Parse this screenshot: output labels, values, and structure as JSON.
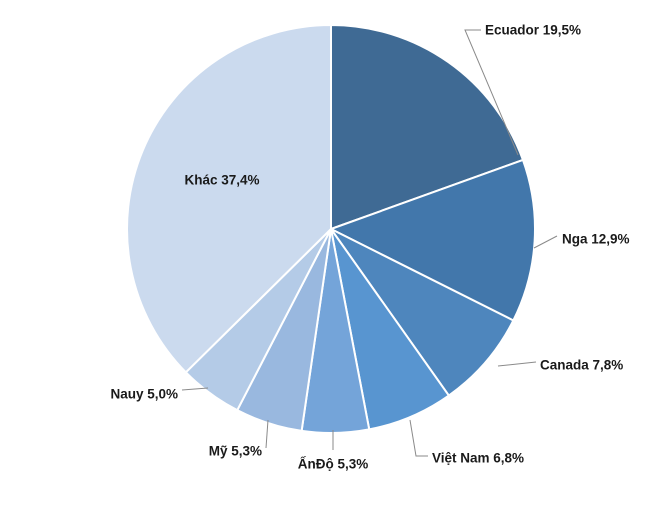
{
  "chart_data": {
    "type": "pie",
    "title": "",
    "slices": [
      {
        "name": "Ecuador",
        "value": 19.5,
        "label": "Ecuador 19,5%",
        "color": "#3f6a94"
      },
      {
        "name": "Nga",
        "value": 12.9,
        "label": "Nga 12,9%",
        "color": "#4277ab"
      },
      {
        "name": "Canada",
        "value": 7.8,
        "label": "Canada 7,8%",
        "color": "#4e86bd"
      },
      {
        "name": "Việt Nam",
        "value": 6.8,
        "label": "Việt Nam 6,8%",
        "color": "#5895d0"
      },
      {
        "name": "ẤnĐộ",
        "value": 5.3,
        "label": "ẤnĐộ 5,3%",
        "color": "#74a4d9"
      },
      {
        "name": "Mỹ",
        "value": 5.3,
        "label": "Mỹ 5,3%",
        "color": "#99b8df"
      },
      {
        "name": "Nauy",
        "value": 5.0,
        "label": "Nauy 5,0%",
        "color": "#b4cbe7"
      },
      {
        "name": "Khác",
        "value": 37.4,
        "label": "Khác 37,4%",
        "color": "#cbdaee"
      }
    ],
    "legend": "none"
  }
}
